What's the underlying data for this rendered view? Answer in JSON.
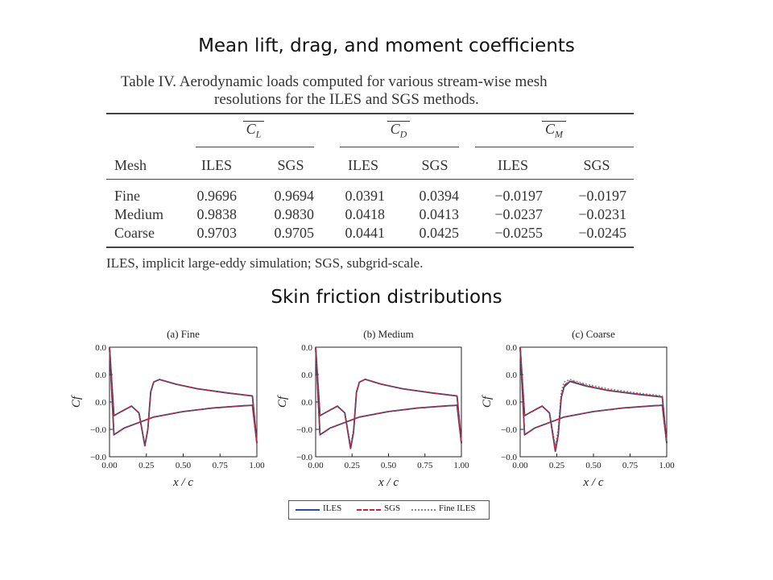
{
  "headings": {
    "loads": "Mean lift, drag, and moment coefficients",
    "skin_friction": "Skin friction distributions"
  },
  "table": {
    "caption_line1": "Table IV.  Aerodynamic loads computed for various stream-wise mesh",
    "caption_line2": "resolutions for the ILES and SGS methods.",
    "group_headers": [
      {
        "symbol": "C",
        "subscript": "L"
      },
      {
        "symbol": "C",
        "subscript": "D"
      },
      {
        "symbol": "C",
        "subscript": "M"
      }
    ],
    "columns": [
      "Mesh",
      "ILES",
      "SGS",
      "ILES",
      "SGS",
      "ILES",
      "SGS"
    ],
    "rows": [
      [
        "Fine",
        "0.9696",
        "0.9694",
        "0.0391",
        "0.0394",
        "−0.0197",
        "−0.0197"
      ],
      [
        "Medium",
        "0.9838",
        "0.9830",
        "0.0418",
        "0.0413",
        "−0.0237",
        "−0.0231"
      ],
      [
        "Coarse",
        "0.9703",
        "0.9705",
        "0.0441",
        "0.0425",
        "−0.0255",
        "−0.0245"
      ]
    ],
    "footnote": "ILES, implicit large-eddy simulation; SGS, subgrid-scale."
  },
  "chart_data": [
    {
      "type": "line",
      "title": "(a) Fine",
      "xlabel": "x/c",
      "ylabel": "C_f",
      "xlim": [
        0,
        1
      ],
      "ylim": [
        -0.02,
        0.02
      ],
      "xticks": [
        "0.00",
        "0.25",
        "0.50",
        "0.75",
        "1.00"
      ],
      "yticks": [
        "0.0",
        "0.0",
        "0.0",
        "−0.0",
        "−0.0"
      ],
      "series": [
        {
          "name": "ILES",
          "upper": [
            [
              0.0,
              0.02
            ],
            [
              0.03,
              -0.005
            ],
            [
              0.08,
              -0.0035
            ],
            [
              0.15,
              -0.0015
            ],
            [
              0.2,
              -0.004
            ],
            [
              0.24,
              -0.016
            ],
            [
              0.26,
              -0.01
            ],
            [
              0.28,
              0.0037
            ],
            [
              0.3,
              0.0073
            ],
            [
              0.34,
              0.0082
            ],
            [
              0.45,
              0.0065
            ],
            [
              0.6,
              0.0048
            ],
            [
              0.8,
              0.0033
            ],
            [
              0.97,
              0.0022
            ],
            [
              1.0,
              -0.015
            ]
          ],
          "lower": [
            [
              0.0,
              0.02
            ],
            [
              0.03,
              -0.012
            ],
            [
              0.1,
              -0.0095
            ],
            [
              0.3,
              -0.0055
            ],
            [
              0.5,
              -0.0035
            ],
            [
              0.7,
              -0.0022
            ],
            [
              0.9,
              -0.0014
            ],
            [
              0.97,
              -0.0012
            ],
            [
              1.0,
              -0.015
            ]
          ]
        },
        {
          "name": "SGS",
          "upper": [
            [
              0.0,
              0.02
            ],
            [
              0.03,
              -0.005
            ],
            [
              0.08,
              -0.0035
            ],
            [
              0.15,
              -0.0015
            ],
            [
              0.2,
              -0.004
            ],
            [
              0.24,
              -0.016
            ],
            [
              0.26,
              -0.01
            ],
            [
              0.28,
              0.0037
            ],
            [
              0.3,
              0.0073
            ],
            [
              0.34,
              0.0082
            ],
            [
              0.45,
              0.0065
            ],
            [
              0.6,
              0.0048
            ],
            [
              0.8,
              0.0033
            ],
            [
              0.97,
              0.0022
            ],
            [
              1.0,
              -0.015
            ]
          ],
          "lower": [
            [
              0.0,
              0.02
            ],
            [
              0.03,
              -0.012
            ],
            [
              0.1,
              -0.0095
            ],
            [
              0.3,
              -0.0055
            ],
            [
              0.5,
              -0.0035
            ],
            [
              0.7,
              -0.0022
            ],
            [
              0.9,
              -0.0014
            ],
            [
              0.97,
              -0.0012
            ],
            [
              1.0,
              -0.015
            ]
          ]
        },
        {
          "name": "Fine ILES",
          "upper": [
            [
              0.0,
              0.02
            ],
            [
              0.03,
              -0.005
            ],
            [
              0.08,
              -0.0035
            ],
            [
              0.15,
              -0.0015
            ],
            [
              0.2,
              -0.004
            ],
            [
              0.24,
              -0.016
            ],
            [
              0.26,
              -0.01
            ],
            [
              0.28,
              0.0037
            ],
            [
              0.3,
              0.0073
            ],
            [
              0.34,
              0.0082
            ],
            [
              0.45,
              0.0065
            ],
            [
              0.6,
              0.0048
            ],
            [
              0.8,
              0.0033
            ],
            [
              0.97,
              0.0022
            ],
            [
              1.0,
              -0.015
            ]
          ],
          "lower": [
            [
              0.0,
              0.02
            ],
            [
              0.03,
              -0.012
            ],
            [
              0.1,
              -0.0095
            ],
            [
              0.3,
              -0.0055
            ],
            [
              0.5,
              -0.0035
            ],
            [
              0.7,
              -0.0022
            ],
            [
              0.9,
              -0.0014
            ],
            [
              0.97,
              -0.0012
            ],
            [
              1.0,
              -0.015
            ]
          ]
        }
      ]
    },
    {
      "type": "line",
      "title": "(b) Medium",
      "xlabel": "x/c",
      "ylabel": "C_f",
      "xlim": [
        0,
        1
      ],
      "ylim": [
        -0.02,
        0.02
      ],
      "xticks": [
        "0.00",
        "0.25",
        "0.50",
        "0.75",
        "1.00"
      ],
      "yticks": [
        "0.0",
        "0.0",
        "0.0",
        "−0.0",
        "−0.0"
      ],
      "series": [
        {
          "name": "ILES",
          "upper": [
            [
              0.0,
              0.02
            ],
            [
              0.03,
              -0.005
            ],
            [
              0.08,
              -0.0035
            ],
            [
              0.15,
              -0.0015
            ],
            [
              0.2,
              -0.004
            ],
            [
              0.24,
              -0.017
            ],
            [
              0.26,
              -0.011
            ],
            [
              0.28,
              0.0035
            ],
            [
              0.3,
              0.0072
            ],
            [
              0.34,
              0.0083
            ],
            [
              0.45,
              0.0065
            ],
            [
              0.6,
              0.0048
            ],
            [
              0.8,
              0.0033
            ],
            [
              0.97,
              0.0022
            ],
            [
              1.0,
              -0.015
            ]
          ],
          "lower": [
            [
              0.0,
              0.02
            ],
            [
              0.03,
              -0.012
            ],
            [
              0.1,
              -0.0095
            ],
            [
              0.3,
              -0.0055
            ],
            [
              0.5,
              -0.0035
            ],
            [
              0.7,
              -0.0022
            ],
            [
              0.9,
              -0.0014
            ],
            [
              0.97,
              -0.0012
            ],
            [
              1.0,
              -0.015
            ]
          ]
        },
        {
          "name": "SGS",
          "upper": [
            [
              0.0,
              0.02
            ],
            [
              0.03,
              -0.005
            ],
            [
              0.08,
              -0.0035
            ],
            [
              0.15,
              -0.0015
            ],
            [
              0.2,
              -0.004
            ],
            [
              0.24,
              -0.017
            ],
            [
              0.26,
              -0.011
            ],
            [
              0.28,
              0.0035
            ],
            [
              0.3,
              0.0072
            ],
            [
              0.34,
              0.0083
            ],
            [
              0.45,
              0.0065
            ],
            [
              0.6,
              0.0048
            ],
            [
              0.8,
              0.0033
            ],
            [
              0.97,
              0.0022
            ],
            [
              1.0,
              -0.015
            ]
          ],
          "lower": [
            [
              0.0,
              0.02
            ],
            [
              0.03,
              -0.012
            ],
            [
              0.1,
              -0.0095
            ],
            [
              0.3,
              -0.0055
            ],
            [
              0.5,
              -0.0035
            ],
            [
              0.7,
              -0.0022
            ],
            [
              0.9,
              -0.0014
            ],
            [
              0.97,
              -0.0012
            ],
            [
              1.0,
              -0.015
            ]
          ]
        },
        {
          "name": "Fine ILES",
          "upper": [
            [
              0.0,
              0.02
            ],
            [
              0.03,
              -0.005
            ],
            [
              0.08,
              -0.0035
            ],
            [
              0.15,
              -0.0015
            ],
            [
              0.2,
              -0.004
            ],
            [
              0.24,
              -0.016
            ],
            [
              0.26,
              -0.01
            ],
            [
              0.28,
              0.0037
            ],
            [
              0.3,
              0.0073
            ],
            [
              0.34,
              0.0082
            ],
            [
              0.45,
              0.0065
            ],
            [
              0.6,
              0.0048
            ],
            [
              0.8,
              0.0033
            ],
            [
              0.97,
              0.0022
            ],
            [
              1.0,
              -0.015
            ]
          ],
          "lower": [
            [
              0.0,
              0.02
            ],
            [
              0.03,
              -0.012
            ],
            [
              0.1,
              -0.0095
            ],
            [
              0.3,
              -0.0055
            ],
            [
              0.5,
              -0.0035
            ],
            [
              0.7,
              -0.0022
            ],
            [
              0.9,
              -0.0014
            ],
            [
              0.97,
              -0.0012
            ],
            [
              1.0,
              -0.015
            ]
          ]
        }
      ]
    },
    {
      "type": "line",
      "title": "(c) Coarse",
      "xlabel": "x/c",
      "ylabel": "C_f",
      "xlim": [
        0,
        1
      ],
      "ylim": [
        -0.02,
        0.02
      ],
      "xticks": [
        "0.00",
        "0.25",
        "0.50",
        "0.75",
        "1.00"
      ],
      "yticks": [
        "0.0",
        "0.0",
        "0.0",
        "−0.0",
        "−0.0"
      ],
      "series": [
        {
          "name": "ILES",
          "upper": [
            [
              0.0,
              0.02
            ],
            [
              0.03,
              -0.005
            ],
            [
              0.08,
              -0.0035
            ],
            [
              0.15,
              -0.0015
            ],
            [
              0.2,
              -0.004
            ],
            [
              0.24,
              -0.018
            ],
            [
              0.26,
              -0.012
            ],
            [
              0.28,
              0.0015
            ],
            [
              0.3,
              0.0055
            ],
            [
              0.34,
              0.0075
            ],
            [
              0.45,
              0.0058
            ],
            [
              0.6,
              0.0042
            ],
            [
              0.8,
              0.0028
            ],
            [
              0.97,
              0.0018
            ],
            [
              1.0,
              -0.015
            ]
          ],
          "lower": [
            [
              0.0,
              0.02
            ],
            [
              0.03,
              -0.012
            ],
            [
              0.1,
              -0.0095
            ],
            [
              0.3,
              -0.0055
            ],
            [
              0.5,
              -0.0035
            ],
            [
              0.7,
              -0.0022
            ],
            [
              0.9,
              -0.0014
            ],
            [
              0.97,
              -0.0012
            ],
            [
              1.0,
              -0.015
            ]
          ]
        },
        {
          "name": "SGS",
          "upper": [
            [
              0.0,
              0.02
            ],
            [
              0.03,
              -0.005
            ],
            [
              0.08,
              -0.0035
            ],
            [
              0.15,
              -0.0015
            ],
            [
              0.2,
              -0.004
            ],
            [
              0.24,
              -0.018
            ],
            [
              0.26,
              -0.012
            ],
            [
              0.28,
              0.002
            ],
            [
              0.3,
              0.006
            ],
            [
              0.34,
              0.0078
            ],
            [
              0.45,
              0.006
            ],
            [
              0.6,
              0.0043
            ],
            [
              0.8,
              0.0029
            ],
            [
              0.97,
              0.0019
            ],
            [
              1.0,
              -0.015
            ]
          ],
          "lower": [
            [
              0.0,
              0.02
            ],
            [
              0.03,
              -0.012
            ],
            [
              0.1,
              -0.0095
            ],
            [
              0.3,
              -0.0055
            ],
            [
              0.5,
              -0.0035
            ],
            [
              0.7,
              -0.0022
            ],
            [
              0.9,
              -0.0014
            ],
            [
              0.97,
              -0.0012
            ],
            [
              1.0,
              -0.015
            ]
          ]
        },
        {
          "name": "Fine ILES",
          "upper": [
            [
              0.0,
              0.02
            ],
            [
              0.03,
              -0.005
            ],
            [
              0.08,
              -0.0035
            ],
            [
              0.15,
              -0.0015
            ],
            [
              0.2,
              -0.004
            ],
            [
              0.24,
              -0.016
            ],
            [
              0.26,
              -0.01
            ],
            [
              0.28,
              0.0037
            ],
            [
              0.3,
              0.0073
            ],
            [
              0.34,
              0.0082
            ],
            [
              0.45,
              0.0065
            ],
            [
              0.6,
              0.0048
            ],
            [
              0.8,
              0.0033
            ],
            [
              0.97,
              0.0022
            ],
            [
              1.0,
              -0.015
            ]
          ],
          "lower": [
            [
              0.0,
              0.02
            ],
            [
              0.03,
              -0.012
            ],
            [
              0.1,
              -0.0095
            ],
            [
              0.3,
              -0.0055
            ],
            [
              0.5,
              -0.0035
            ],
            [
              0.7,
              -0.0022
            ],
            [
              0.9,
              -0.0014
            ],
            [
              0.97,
              -0.0012
            ],
            [
              1.0,
              -0.015
            ]
          ]
        }
      ]
    }
  ],
  "legend": {
    "items": [
      {
        "label": "ILES",
        "color": "#2b4f8f",
        "style": "solid"
      },
      {
        "label": "SGS",
        "color": "#c0283a",
        "style": "dashdot"
      },
      {
        "label": "Fine ILES",
        "color": "#8a8a8a",
        "style": "dotted"
      }
    ]
  }
}
